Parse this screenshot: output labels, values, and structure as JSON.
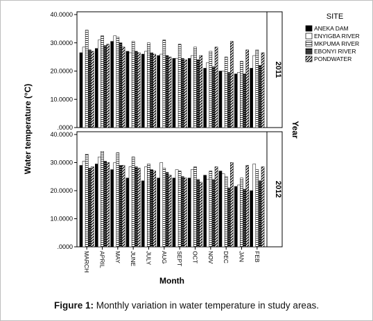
{
  "caption": {
    "label": "Figure 1:",
    "text": " Monthly variation in water temperature in study areas."
  },
  "chart_data": {
    "type": "bar",
    "title": "",
    "xlabel": "Month",
    "ylabel": "Water temperature (°C)",
    "facet_label": "Year",
    "legend_title": "SITE",
    "legend_position": "top-right",
    "ylim": [
      0,
      40
    ],
    "yticks": [
      0,
      10,
      20,
      30,
      40
    ],
    "ytick_labels": [
      ".0000",
      "10.0000",
      "20.0000",
      "30.0000",
      "40.0000"
    ],
    "categories": [
      "MARCH",
      "APRIL",
      "MAY",
      "JUNE",
      "JULY",
      "AUG",
      "SEPT",
      "OCT",
      "NOV",
      "DEC",
      "JAN",
      "FEB"
    ],
    "series_names": [
      "ANEKA DAM",
      "ENYIGBA RIVER",
      "MKPUMA RIVER",
      "EBONYI RIVER",
      "PONDWATER"
    ],
    "series_patterns": [
      "solid",
      "white",
      "horizontal-lines",
      "dense-black",
      "diagonal"
    ],
    "panels": [
      {
        "year": "2011",
        "series": [
          {
            "name": "ANEKA DAM",
            "values": [
              26.5,
              28.0,
              30.5,
              27.0,
              26.0,
              25.5,
              24.5,
              24.5,
              21.0,
              20.0,
              19.0,
              21.0
            ]
          },
          {
            "name": "ENYIGBA RIVER",
            "values": [
              28.5,
              31.0,
              32.5,
              26.5,
              27.0,
              26.0,
              24.5,
              25.5,
              23.0,
              20.0,
              19.5,
              25.5
            ]
          },
          {
            "name": "MKPUMA RIVER",
            "values": [
              34.5,
              32.5,
              32.0,
              30.5,
              30.0,
              31.0,
              29.5,
              28.5,
              27.0,
              25.0,
              23.5,
              27.5
            ]
          },
          {
            "name": "EBONYI RIVER",
            "values": [
              27.5,
              29.0,
              30.0,
              27.0,
              26.5,
              25.5,
              24.5,
              24.0,
              21.5,
              19.5,
              19.0,
              22.0
            ]
          },
          {
            "name": "PONDWATER",
            "values": [
              27.0,
              29.5,
              28.5,
              26.5,
              26.0,
              25.0,
              24.0,
              25.5,
              28.5,
              30.5,
              27.5,
              26.5
            ]
          }
        ]
      },
      {
        "year": "2012",
        "series": [
          {
            "name": "ANEKA DAM",
            "values": [
              29.0,
              29.5,
              27.5,
              24.5,
              23.5,
              24.5,
              24.5,
              24.5,
              25.5,
              27.0,
              21.5,
              20.0
            ]
          },
          {
            "name": "ENYIGBA RIVER",
            "values": [
              30.5,
              32.0,
              30.0,
              28.5,
              28.5,
              30.0,
              27.5,
              27.5,
              24.0,
              26.0,
              22.0,
              29.5
            ]
          },
          {
            "name": "MKPUMA RIVER",
            "values": [
              33.0,
              34.0,
              33.5,
              32.0,
              29.5,
              28.0,
              27.0,
              28.5,
              27.0,
              25.0,
              24.5,
              27.5
            ]
          },
          {
            "name": "EBONYI RIVER",
            "values": [
              28.0,
              30.5,
              29.0,
              28.5,
              27.5,
              26.5,
              25.0,
              24.0,
              24.0,
              21.0,
              20.5,
              23.5
            ]
          },
          {
            "name": "PONDWATER",
            "values": [
              28.5,
              30.0,
              29.0,
              28.0,
              27.0,
              25.5,
              24.5,
              23.0,
              28.5,
              30.0,
              29.0,
              28.5
            ]
          }
        ]
      }
    ]
  }
}
